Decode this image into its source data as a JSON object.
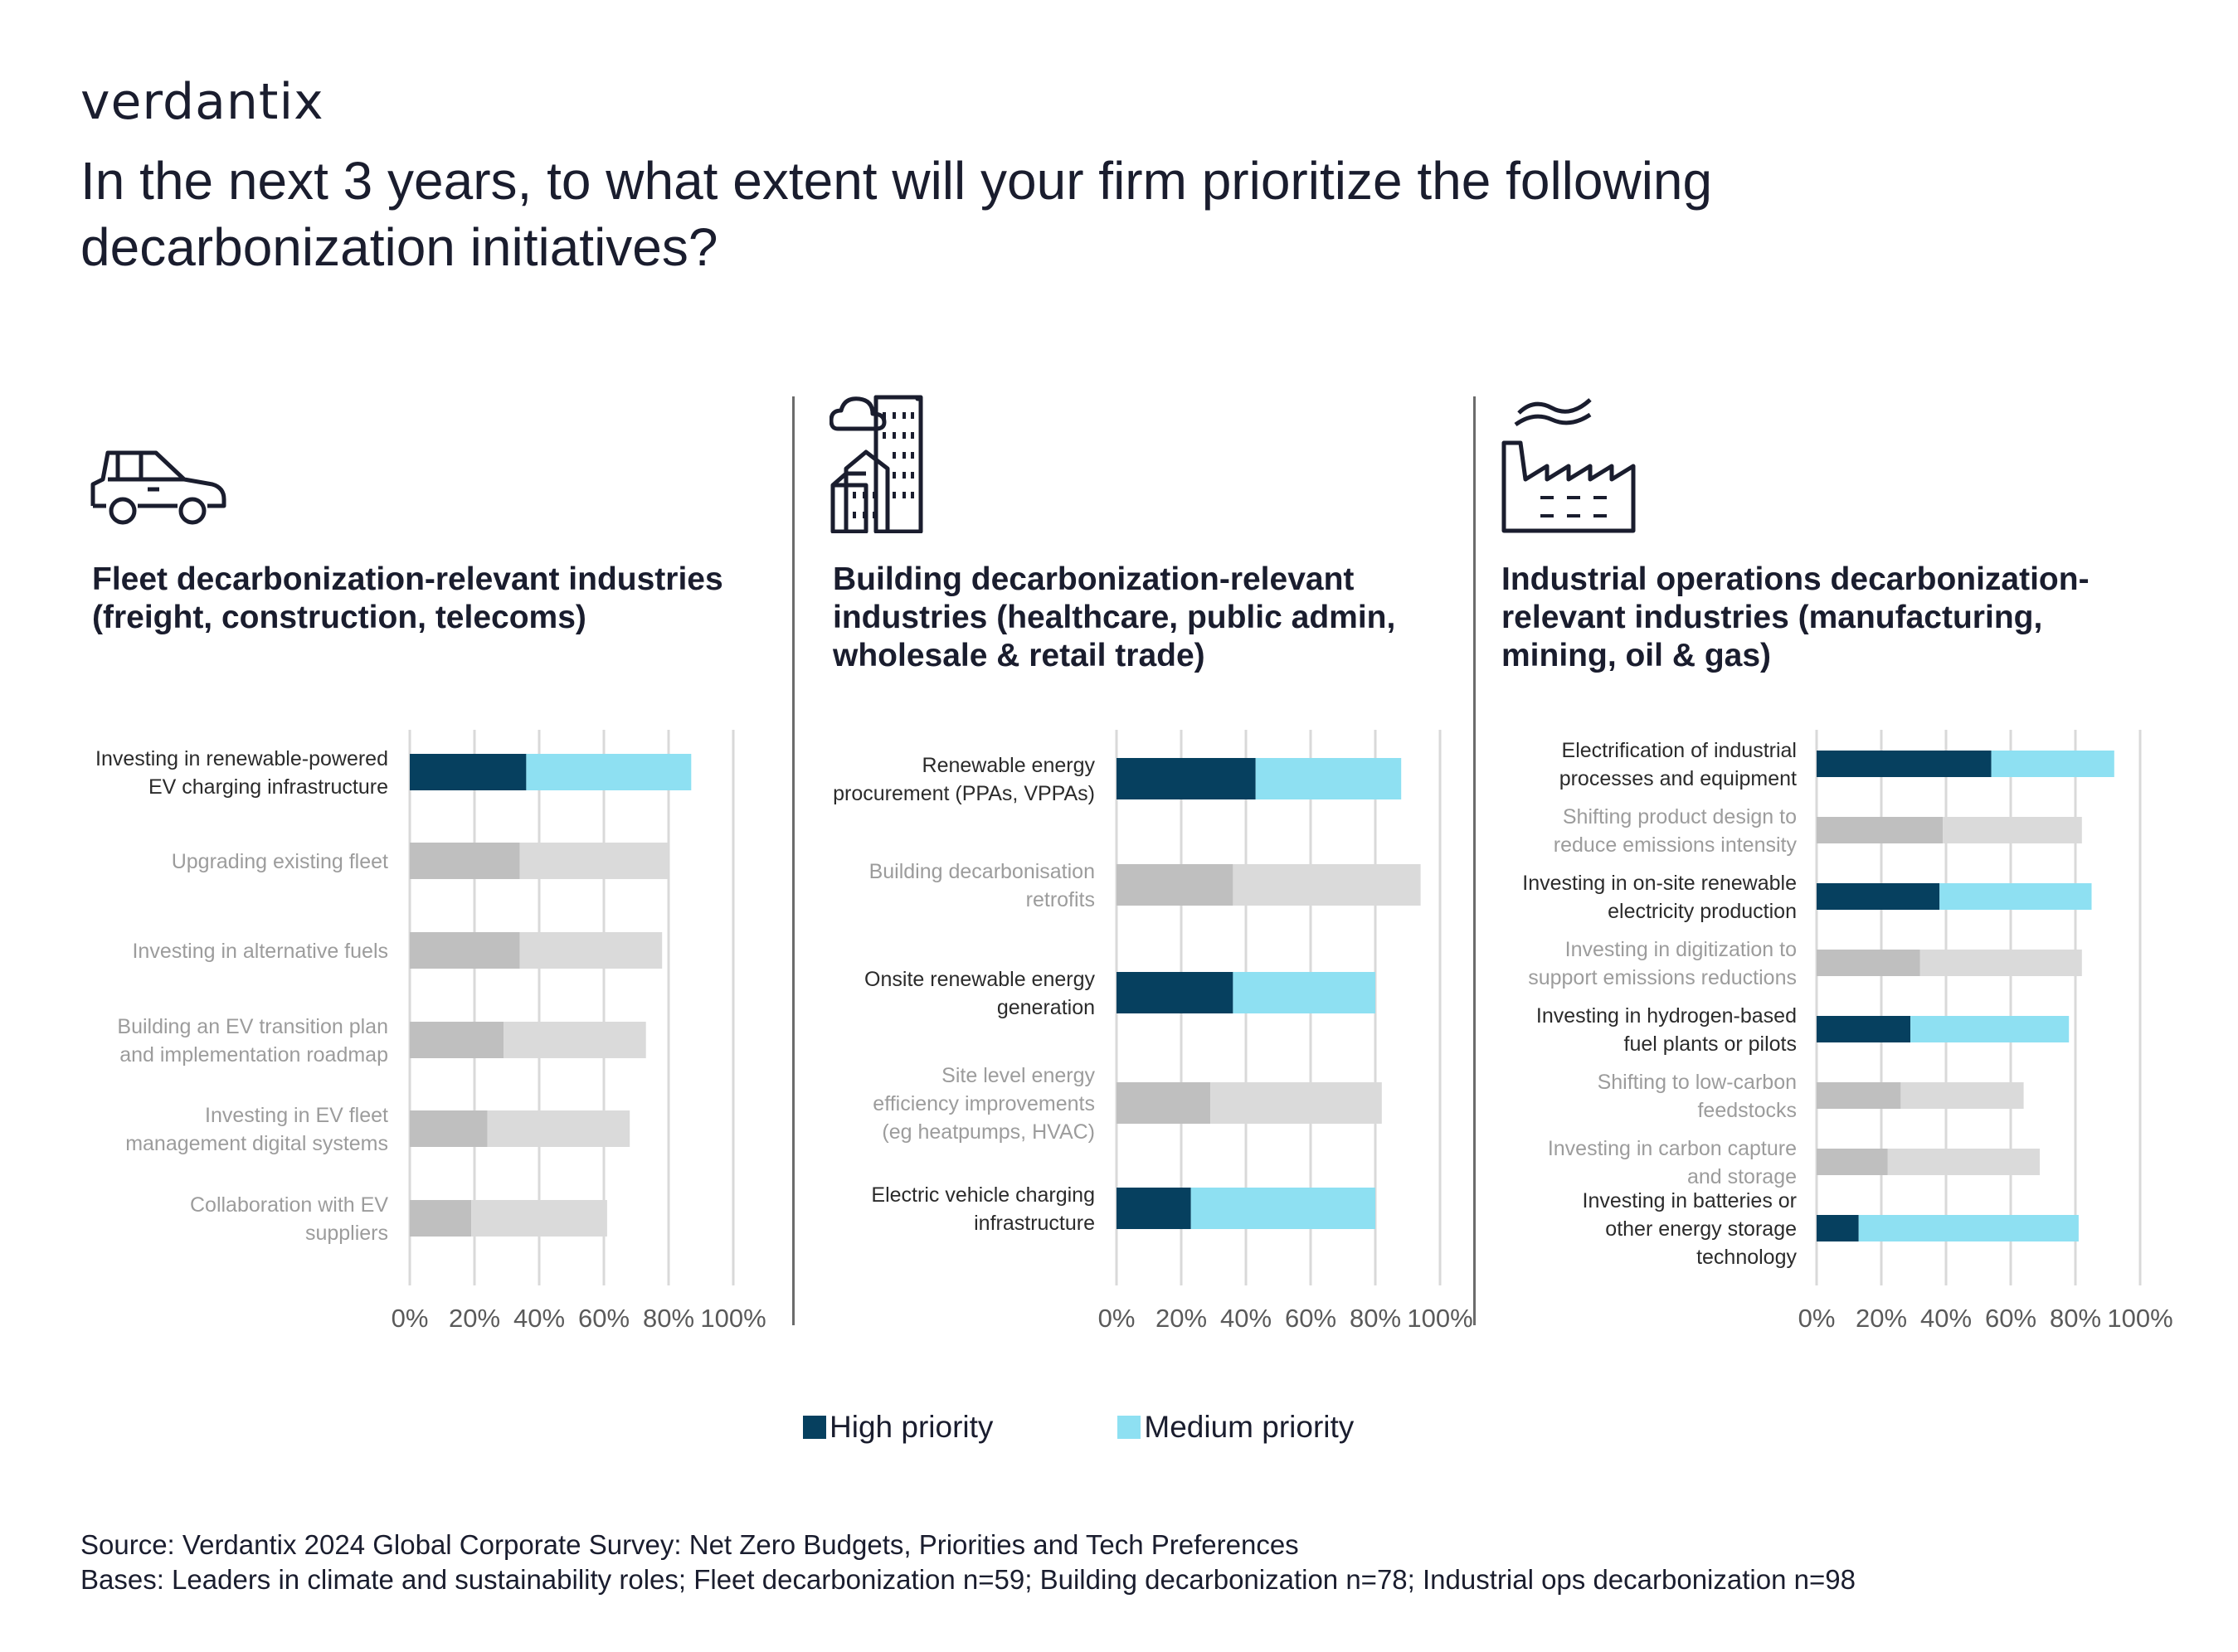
{
  "brand": "verdantix",
  "title": "In the next 3 years, to what extent will your firm prioritize the following decarbonization initiatives?",
  "colors": {
    "high": "#06405f",
    "medium": "#8ee0f2",
    "high_other": "#bfbfbf",
    "medium_other": "#dadada",
    "grid": "#d9d9d9",
    "label_highlight": "#2b2b2b",
    "label_muted": "#9c9c9c"
  },
  "legend": {
    "high": "High priority",
    "medium": "Medium priority"
  },
  "source": "Source: Verdantix 2024 Global Corporate Survey: Net Zero Budgets, Priorities and Tech Preferences",
  "bases": "Bases: Leaders in climate and sustainability roles; Fleet decarbonization n=59; Building decarbonization n=78; Industrial ops decarbonization n=98",
  "panels": [
    {
      "title": "Fleet decarbonization-relevant industries (freight, construction, telecoms)",
      "icon": "car-icon"
    },
    {
      "title": "Building decarbonization-relevant industries (healthcare, public admin, wholesale & retail trade)",
      "icon": "city-buildings-icon"
    },
    {
      "title": "Industrial operations decarbonization-relevant industries (manufacturing, mining, oil & gas)",
      "icon": "factory-icon"
    }
  ],
  "chart_data": [
    {
      "type": "bar",
      "orientation": "horizontal",
      "stacked": true,
      "xlim": [
        0,
        100
      ],
      "ticks": [
        "0%",
        "20%",
        "40%",
        "60%",
        "80%",
        "100%"
      ],
      "grid": true,
      "categories": [
        "Investing in renewable-powered EV charging infrastructure",
        "Upgrading existing fleet",
        "Investing in alternative fuels",
        "Building an EV transition plan and implementation roadmap",
        "Investing in EV fleet management digital systems",
        "Collaboration with EV suppliers"
      ],
      "highlight": [
        true,
        false,
        false,
        false,
        false,
        false
      ],
      "series": [
        {
          "name": "High priority",
          "values": [
            36,
            34,
            34,
            29,
            24,
            19
          ]
        },
        {
          "name": "Medium priority",
          "values": [
            51,
            46,
            44,
            44,
            44,
            42
          ]
        }
      ]
    },
    {
      "type": "bar",
      "orientation": "horizontal",
      "stacked": true,
      "xlim": [
        0,
        100
      ],
      "ticks": [
        "0%",
        "20%",
        "40%",
        "60%",
        "80%",
        "100%"
      ],
      "grid": true,
      "categories": [
        "Renewable energy procurement (PPAs, VPPAs)",
        "Building decarbonisation retrofits",
        "Onsite renewable energy generation",
        "Site level energy efficiency improvements (eg heatpumps, HVAC)",
        "Electric vehicle charging infrastructure"
      ],
      "highlight": [
        true,
        false,
        true,
        false,
        true
      ],
      "series": [
        {
          "name": "High priority",
          "values": [
            43,
            36,
            36,
            29,
            23
          ]
        },
        {
          "name": "Medium priority",
          "values": [
            45,
            58,
            44,
            53,
            57
          ]
        }
      ]
    },
    {
      "type": "bar",
      "orientation": "horizontal",
      "stacked": true,
      "xlim": [
        0,
        100
      ],
      "ticks": [
        "0%",
        "20%",
        "40%",
        "60%",
        "80%",
        "100%"
      ],
      "grid": true,
      "categories": [
        "Electrification of industrial processes and equipment",
        "Shifting product design to reduce emissions intensity",
        "Investing in on-site renewable electricity production",
        "Investing in digitization to support emissions reductions",
        "Investing in hydrogen-based fuel plants or pilots",
        "Shifting to low-carbon feedstocks",
        "Investing in carbon capture and storage",
        "Investing in batteries or other energy storage technology"
      ],
      "highlight": [
        true,
        false,
        true,
        false,
        true,
        false,
        false,
        true
      ],
      "series": [
        {
          "name": "High priority",
          "values": [
            54,
            39,
            38,
            32,
            29,
            26,
            22,
            13
          ]
        },
        {
          "name": "Medium priority",
          "values": [
            38,
            43,
            47,
            50,
            49,
            38,
            47,
            68
          ]
        }
      ]
    }
  ]
}
